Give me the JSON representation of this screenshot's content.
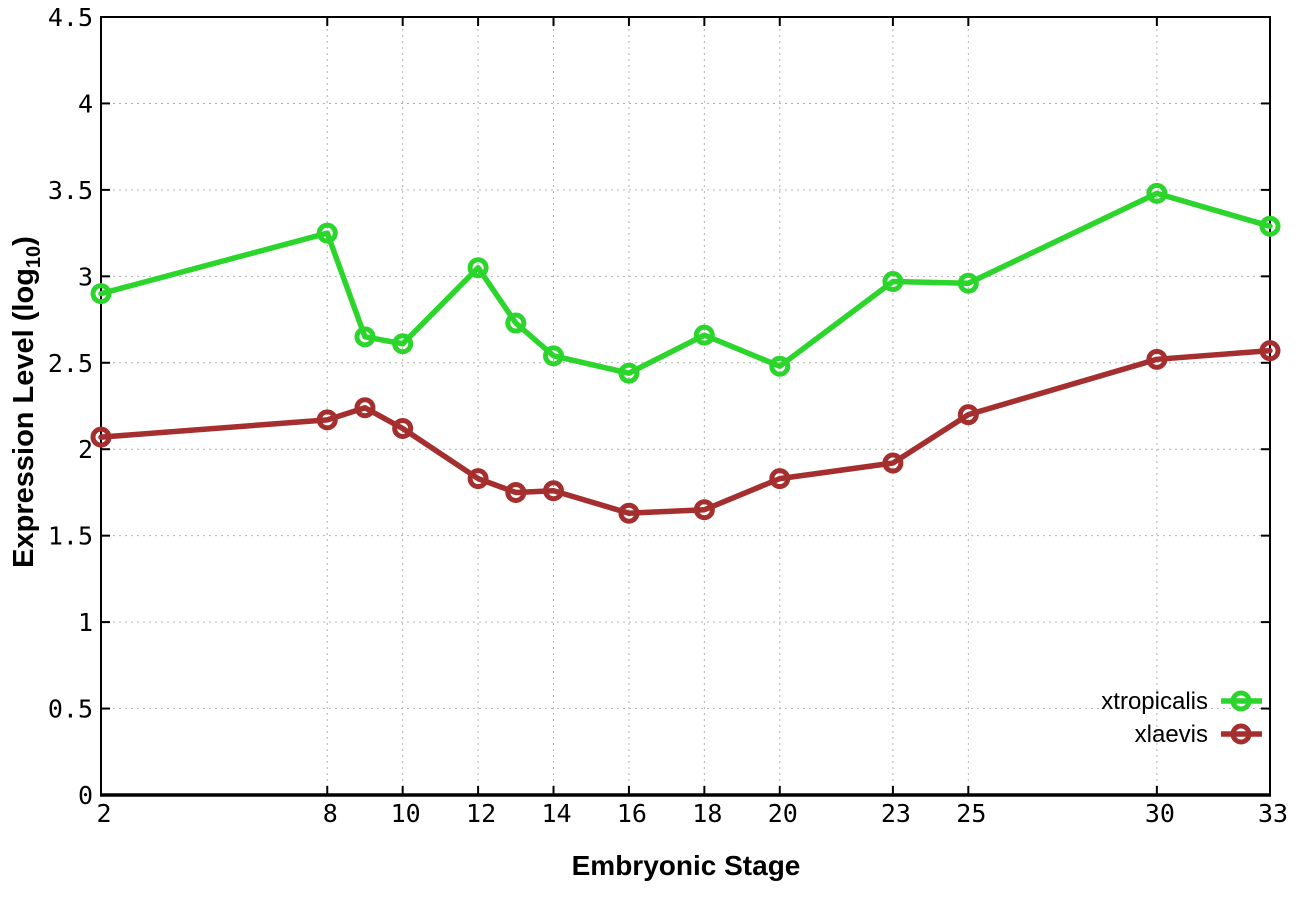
{
  "figure": {
    "xlabel": "Embryonic Stage",
    "ylabel_prefix": "Expression Level (log",
    "ylabel_sub": "10",
    "ylabel_suffix": ")"
  },
  "chart_data": {
    "type": "line",
    "title": "",
    "xlabel": "Embryonic Stage",
    "ylabel": "Expression Level (log10)",
    "xlim": [
      2,
      33
    ],
    "ylim": [
      0,
      4.5
    ],
    "grid": true,
    "legend_position": "inside-bottom-right",
    "background": "#ffffff",
    "grid_color": "#b3b3b3",
    "axis_color": "#000000",
    "x": [
      2,
      8,
      9,
      10,
      12,
      13,
      14,
      16,
      18,
      20,
      23,
      25,
      30,
      33
    ],
    "xtick_values": [
      2,
      8,
      10,
      12,
      14,
      16,
      18,
      20,
      23,
      25,
      30,
      33
    ],
    "xtick_labels": [
      "2",
      "8",
      "10",
      "12",
      "14",
      "16",
      "18",
      "20",
      "23",
      "25",
      "30",
      "33"
    ],
    "ytick_values": [
      0,
      0.5,
      1,
      1.5,
      2,
      2.5,
      3,
      3.5,
      4,
      4.5
    ],
    "ytick_labels": [
      "0",
      "0.5",
      "1",
      "1.5",
      "2",
      "2.5",
      "3",
      "3.5",
      "4",
      "4.5"
    ],
    "series": [
      {
        "name": "xtropicalis",
        "color": "#2bd52b",
        "values": [
          2.9,
          3.25,
          2.65,
          2.61,
          3.05,
          2.73,
          2.54,
          2.44,
          2.66,
          2.48,
          2.97,
          2.96,
          3.48,
          3.29
        ]
      },
      {
        "name": "xlaevis",
        "color": "#a52f2f",
        "values": [
          2.07,
          2.17,
          2.24,
          2.12,
          1.83,
          1.75,
          1.76,
          1.63,
          1.65,
          1.83,
          1.92,
          2.2,
          2.52,
          2.57
        ]
      }
    ]
  }
}
